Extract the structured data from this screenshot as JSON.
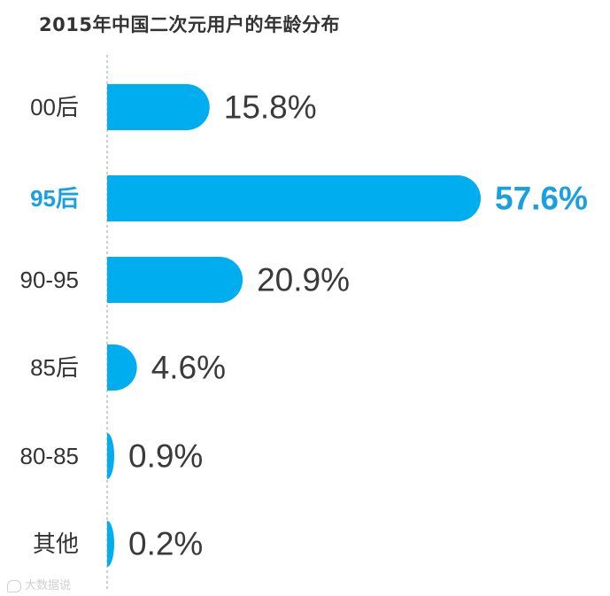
{
  "chart_data": {
    "type": "bar",
    "orientation": "horizontal",
    "title": "2015年中国二次元用户的年龄分布",
    "categories": [
      "00后",
      "95后",
      "90-95",
      "85后",
      "80-85",
      "其他"
    ],
    "values": [
      15.8,
      57.6,
      20.9,
      4.6,
      0.9,
      0.2
    ],
    "value_labels": [
      "15.8%",
      "57.6%",
      "20.9%",
      "4.6%",
      "0.9%",
      "0.2%"
    ],
    "highlight": "95后",
    "xlabel": "",
    "ylabel": "",
    "xlim": [
      0,
      57.6
    ],
    "grid": false,
    "legend": "none",
    "colors": {
      "bar": "#00aeef",
      "highlight_text": "#1aa0e0",
      "text": "#333333",
      "axis": "#9aa4aa"
    }
  },
  "watermark": {
    "text": "大数据说"
  }
}
